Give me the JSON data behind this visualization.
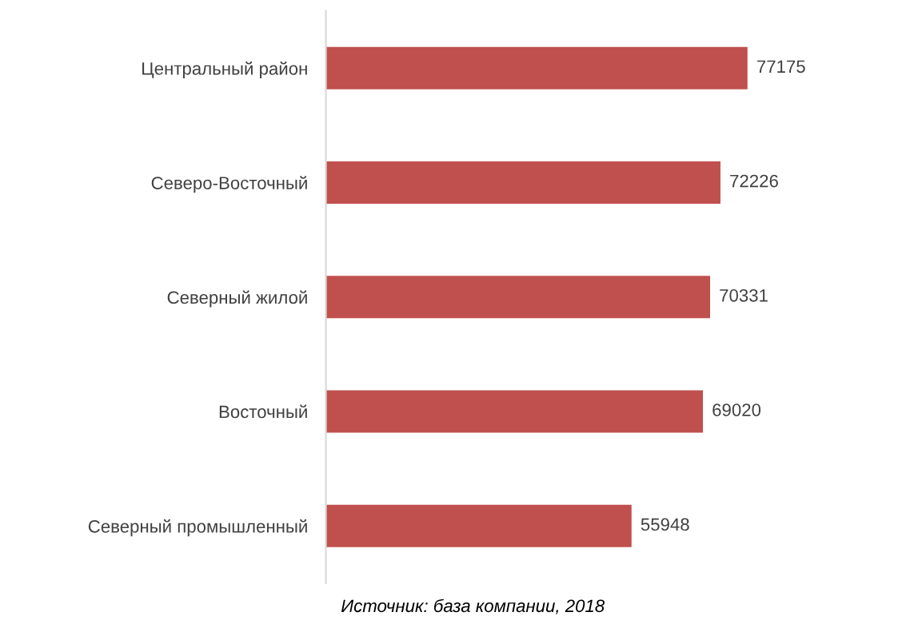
{
  "chart_data": {
    "type": "bar",
    "orientation": "horizontal",
    "categories": [
      "Центральный район",
      "Северо-Восточный",
      "Северный жилой",
      "Восточный",
      "Северный промышленный"
    ],
    "values": [
      77175,
      72226,
      70331,
      69020,
      55948
    ],
    "color": "#c0504d",
    "data_labels": true,
    "tick_labels": "y",
    "grid": false,
    "annotations": [
      "Источник: база компании, 2018"
    ]
  }
}
